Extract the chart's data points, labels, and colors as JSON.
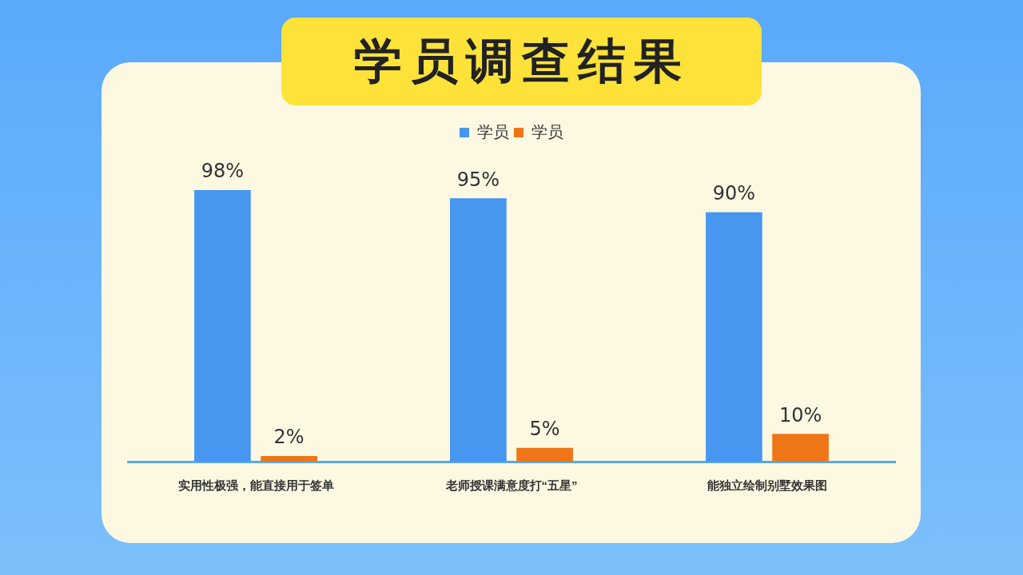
{
  "chart_data": {
    "type": "bar",
    "title": "学员调查结果",
    "categories": [
      "实用性极强，能直接用于签单",
      "老师授课满意度打“五星”",
      "能独立绘制别墅效果图"
    ],
    "series": [
      {
        "name": "学员",
        "color": "#4796f0",
        "values": [
          98,
          95,
          90
        ],
        "value_labels": [
          "98%",
          "95%",
          "90%"
        ]
      },
      {
        "name": "学员",
        "color": "#ef7617",
        "values": [
          2,
          5,
          10
        ],
        "value_labels": [
          "2%",
          "5%",
          "10%"
        ]
      }
    ],
    "legend": "top",
    "grid": false
  }
}
